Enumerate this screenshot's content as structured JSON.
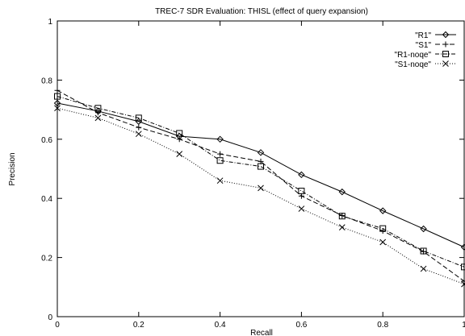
{
  "chart_data": {
    "type": "line",
    "title": "TREC-7 SDR Evaluation: THISL (effect of query expansion)",
    "xlabel": "Recall",
    "ylabel": "Precision",
    "xlim": [
      0,
      1
    ],
    "ylim": [
      0,
      1
    ],
    "grid": false,
    "legend_position": "top-right",
    "x": [
      0,
      0.1,
      0.2,
      0.3,
      0.4,
      0.5,
      0.6,
      0.7,
      0.8,
      0.9,
      1.0
    ],
    "x_ticks": [
      "0",
      "0.2",
      "0.4",
      "0.6",
      "0.8",
      "1"
    ],
    "y_ticks": [
      "0",
      "0.2",
      "0.4",
      "0.6",
      "0.8",
      "1"
    ],
    "series": [
      {
        "name": "\"R1\"",
        "marker": "diamond",
        "dash": "solid",
        "values": [
          0.722,
          0.695,
          0.66,
          0.61,
          0.6,
          0.555,
          0.48,
          0.422,
          0.358,
          0.297,
          0.235
        ]
      },
      {
        "name": "\"S1\"",
        "marker": "plus",
        "dash": "dashed",
        "values": [
          0.765,
          0.69,
          0.64,
          0.6,
          0.55,
          0.525,
          0.408,
          0.342,
          0.29,
          0.22,
          0.12
        ]
      },
      {
        "name": "\"R1-noqe\"",
        "marker": "square",
        "dash": "dashdot",
        "values": [
          0.745,
          0.705,
          0.672,
          0.62,
          0.528,
          0.508,
          0.425,
          0.34,
          0.298,
          0.222,
          0.168
        ]
      },
      {
        "name": "\"S1-noqe\"",
        "marker": "cross",
        "dash": "dotted",
        "values": [
          0.705,
          0.672,
          0.618,
          0.55,
          0.46,
          0.435,
          0.365,
          0.302,
          0.252,
          0.162,
          0.11
        ]
      }
    ]
  }
}
